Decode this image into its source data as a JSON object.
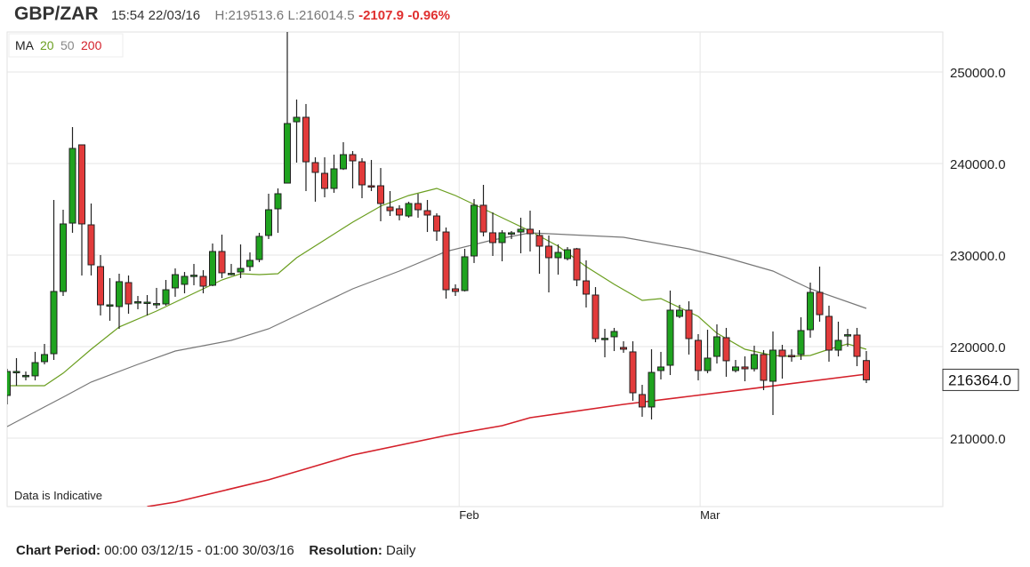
{
  "header": {
    "symbol": "GBP/ZAR",
    "timestamp": "15:54 22/03/16",
    "high_label": "H:",
    "high": "219513.6",
    "low_label": "L:",
    "low": "216014.5",
    "change": "-2107.9",
    "change_pct": "-0.96%"
  },
  "legend": {
    "label": "MA",
    "ma20": "20",
    "ma50": "50",
    "ma200": "200"
  },
  "note": "Data is Indicative",
  "current_price": "216364.0",
  "footer": {
    "period_label": "Chart Period:",
    "period_value": "00:00 03/12/15 - 01:00 30/03/16",
    "resolution_label": "Resolution:",
    "resolution_value": "Daily"
  },
  "colors": {
    "up": "#1fa31f",
    "down": "#e23b3b",
    "ma20": "#6a9e1f",
    "ma50": "#777777",
    "ma200": "#d4202a",
    "grid": "#e6e6e6"
  },
  "chart_data": {
    "type": "candlestick",
    "title": "GBP/ZAR",
    "ylim": [
      202520,
      254370
    ],
    "y_ticks": [
      "210000.0",
      "220000.0",
      "230000.0",
      "240000.0",
      "250000.0"
    ],
    "y_tick_values": [
      210000,
      220000,
      230000,
      240000,
      250000
    ],
    "x_ticks": [
      {
        "label": "Feb",
        "index": 48.4
      },
      {
        "label": "Mar",
        "index": 74.2
      }
    ],
    "grid": true,
    "ohlc_order": [
      "open",
      "high",
      "low",
      "close"
    ],
    "candles": [
      [
        214660,
        217570,
        213690,
        217280
      ],
      [
        217180,
        218740,
        215730,
        217280
      ],
      [
        216800,
        217280,
        216310,
        216850
      ],
      [
        216800,
        219420,
        216310,
        218250
      ],
      [
        218350,
        220290,
        218060,
        219130
      ],
      [
        219220,
        236020,
        218540,
        226020
      ],
      [
        226020,
        234950,
        225530,
        233400
      ],
      [
        233490,
        243980,
        232430,
        241650
      ],
      [
        242040,
        242040,
        227770,
        233400
      ],
      [
        233300,
        235630,
        227770,
        228930
      ],
      [
        228740,
        230000,
        223400,
        224560
      ],
      [
        224470,
        227480,
        222820,
        224560
      ],
      [
        224370,
        227960,
        221940,
        227090
      ],
      [
        226990,
        227770,
        223590,
        224660
      ],
      [
        224850,
        225530,
        224080,
        224900
      ],
      [
        224800,
        225630,
        223400,
        224850
      ],
      [
        224660,
        226410,
        224170,
        224700
      ],
      [
        224660,
        227280,
        224470,
        226210
      ],
      [
        226410,
        228540,
        225440,
        227860
      ],
      [
        226800,
        228150,
        225820,
        227670
      ],
      [
        227770,
        229030,
        226700,
        227800
      ],
      [
        227670,
        228350,
        225820,
        226600
      ],
      [
        226700,
        231260,
        226600,
        230390
      ],
      [
        230390,
        232230,
        227480,
        228060
      ],
      [
        227960,
        229030,
        227770,
        228000
      ],
      [
        228150,
        231160,
        227480,
        228540
      ],
      [
        228740,
        230290,
        228250,
        229420
      ],
      [
        229510,
        232430,
        229220,
        232040
      ],
      [
        232140,
        236700,
        231750,
        234950
      ],
      [
        235050,
        237280,
        232430,
        236700
      ],
      [
        237860,
        254370,
        237860,
        244370
      ],
      [
        244560,
        246990,
        240100,
        245050
      ],
      [
        245050,
        246500,
        236990,
        240190
      ],
      [
        240100,
        240680,
        235830,
        239030
      ],
      [
        238930,
        240680,
        236310,
        237280
      ],
      [
        237280,
        240970,
        236800,
        239420
      ],
      [
        239420,
        242330,
        239300,
        240970
      ],
      [
        240970,
        241360,
        237280,
        240290
      ],
      [
        240190,
        240580,
        236210,
        237670
      ],
      [
        237570,
        240390,
        236990,
        237520
      ],
      [
        237570,
        239510,
        233690,
        235630
      ],
      [
        235240,
        236990,
        234270,
        234850
      ],
      [
        235050,
        235440,
        233790,
        234370
      ],
      [
        234270,
        235830,
        234080,
        235630
      ],
      [
        235630,
        236700,
        234080,
        234950
      ],
      [
        234850,
        236020,
        232520,
        234370
      ],
      [
        234270,
        234560,
        231550,
        232620
      ],
      [
        232520,
        233010,
        225240,
        226210
      ],
      [
        226310,
        226800,
        225530,
        226020
      ],
      [
        226120,
        230680,
        226020,
        229810
      ],
      [
        229900,
        236120,
        229130,
        235440
      ],
      [
        235440,
        237670,
        232040,
        232520
      ],
      [
        232430,
        234660,
        229900,
        231360
      ],
      [
        231360,
        232720,
        229320,
        232430
      ],
      [
        232330,
        232620,
        231750,
        232430
      ],
      [
        232520,
        234080,
        230190,
        232820
      ],
      [
        232820,
        234850,
        230390,
        232330
      ],
      [
        232140,
        232720,
        227960,
        230970
      ],
      [
        230970,
        232140,
        225920,
        229710
      ],
      [
        229710,
        231160,
        227860,
        230290
      ],
      [
        229610,
        230870,
        229420,
        230580
      ],
      [
        230680,
        230780,
        226600,
        227280
      ],
      [
        227180,
        229420,
        224270,
        225730
      ],
      [
        225630,
        226500,
        220480,
        220870
      ],
      [
        220870,
        221940,
        218830,
        220900
      ],
      [
        221070,
        222040,
        219510,
        221650
      ],
      [
        219900,
        220580,
        219320,
        219710
      ],
      [
        219420,
        220580,
        214080,
        214950
      ],
      [
        214760,
        215820,
        212330,
        213400
      ],
      [
        213400,
        219710,
        212040,
        217180
      ],
      [
        217380,
        219420,
        216410,
        217770
      ],
      [
        217960,
        226120,
        216890,
        223980
      ],
      [
        223300,
        224560,
        223110,
        223980
      ],
      [
        223980,
        224950,
        219130,
        220870
      ],
      [
        220680,
        221360,
        216310,
        217380
      ],
      [
        217380,
        221840,
        217090,
        218740
      ],
      [
        218930,
        222430,
        218150,
        221070
      ],
      [
        220970,
        222040,
        216700,
        218450
      ],
      [
        217380,
        218540,
        217180,
        217770
      ],
      [
        217770,
        218930,
        216210,
        217570
      ],
      [
        217570,
        220100,
        217280,
        219130
      ],
      [
        219130,
        219610,
        215240,
        216310
      ],
      [
        216210,
        221650,
        212520,
        219610
      ],
      [
        219610,
        220190,
        216500,
        218930
      ],
      [
        219030,
        219710,
        218350,
        219000
      ],
      [
        219130,
        223200,
        218540,
        221750
      ],
      [
        221840,
        226990,
        220970,
        225920
      ],
      [
        225920,
        228740,
        222720,
        223490
      ],
      [
        223300,
        224470,
        218350,
        219610
      ],
      [
        219610,
        222720,
        218930,
        220680
      ],
      [
        221260,
        221940,
        220000,
        221300
      ],
      [
        221260,
        222040,
        217860,
        218930
      ],
      [
        218472,
        219514,
        216014,
        216364
      ]
    ],
    "series": [
      {
        "name": "20",
        "points": [
          [
            0,
            215730
          ],
          [
            4,
            215730
          ],
          [
            6,
            217090
          ],
          [
            9,
            219710
          ],
          [
            12,
            222140
          ],
          [
            16,
            223880
          ],
          [
            20,
            225820
          ],
          [
            23,
            227280
          ],
          [
            25,
            227960
          ],
          [
            27,
            227860
          ],
          [
            29,
            227960
          ],
          [
            31,
            229710
          ],
          [
            34,
            231650
          ],
          [
            37,
            233590
          ],
          [
            40,
            235340
          ],
          [
            43,
            236500
          ],
          [
            46,
            237280
          ],
          [
            48,
            236500
          ],
          [
            50,
            235530
          ],
          [
            52,
            234560
          ],
          [
            54,
            233590
          ],
          [
            56,
            232620
          ],
          [
            59,
            230970
          ],
          [
            62,
            228740
          ],
          [
            65,
            226800
          ],
          [
            68,
            225050
          ],
          [
            70,
            225240
          ],
          [
            72,
            224270
          ],
          [
            74,
            223300
          ],
          [
            76,
            221460
          ],
          [
            79,
            219710
          ],
          [
            82,
            219030
          ],
          [
            84,
            218930
          ],
          [
            86,
            219030
          ],
          [
            88,
            219710
          ],
          [
            90,
            220290
          ],
          [
            92,
            219710
          ]
        ]
      },
      {
        "name": "50",
        "points": [
          [
            0,
            211260
          ],
          [
            4,
            213400
          ],
          [
            6,
            214470
          ],
          [
            9,
            216120
          ],
          [
            14,
            218060
          ],
          [
            18,
            219510
          ],
          [
            24,
            220680
          ],
          [
            28,
            221940
          ],
          [
            33,
            224370
          ],
          [
            37,
            226310
          ],
          [
            42,
            228250
          ],
          [
            47,
            230390
          ],
          [
            52,
            231650
          ],
          [
            56,
            232430
          ],
          [
            60,
            232230
          ],
          [
            66,
            231940
          ],
          [
            73,
            230680
          ],
          [
            77,
            229710
          ],
          [
            82,
            228250
          ],
          [
            86,
            226310
          ],
          [
            92,
            224170
          ]
        ]
      },
      {
        "name": "200",
        "points": [
          [
            15,
            202520
          ],
          [
            18,
            203010
          ],
          [
            28,
            205440
          ],
          [
            37,
            208150
          ],
          [
            47,
            210290
          ],
          [
            53,
            211360
          ],
          [
            56,
            212230
          ],
          [
            66,
            213690
          ],
          [
            73,
            214560
          ],
          [
            80,
            215440
          ],
          [
            92,
            216990
          ]
        ]
      }
    ]
  }
}
